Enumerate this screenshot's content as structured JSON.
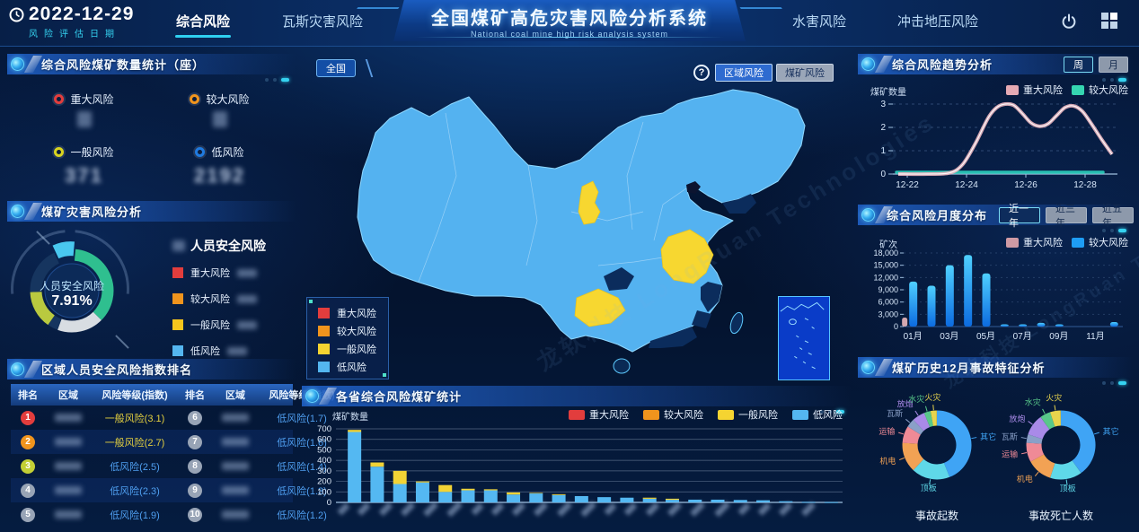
{
  "header": {
    "date": "2022-12-29",
    "date_label": "风险评估日期",
    "tabs": [
      {
        "label": "综合风险"
      },
      {
        "label": "瓦斯灾害风险"
      },
      {
        "label": "水害风险"
      },
      {
        "label": "冲击地压风险"
      }
    ],
    "active_tab": "综合风险",
    "title": "全国煤矿高危灾害风险分析系统",
    "subtitle": "National coal mine high risk analysis system"
  },
  "left": {
    "mine_count": {
      "title": "综合风险煤矿数量统计（座）",
      "items": [
        {
          "label": "重大风险",
          "color": "#e23d3d",
          "value": ""
        },
        {
          "label": "较大风险",
          "color": "#f0941d",
          "value": ""
        },
        {
          "label": "一般风险",
          "color": "#d9d41f",
          "value": "371"
        },
        {
          "label": "低风险",
          "color": "#1f7ae0",
          "value": "2192"
        }
      ]
    },
    "risk_analysis": {
      "title": "煤矿灾害风险分析",
      "donut_center_label": "人员安全风险",
      "donut_center_value": "7.91%",
      "legend_title": "人员安全风险",
      "legend": [
        {
          "label": "重大风险",
          "color": "#e23d3d"
        },
        {
          "label": "较大风险",
          "color": "#f0941d"
        },
        {
          "label": "一般风险",
          "color": "#f5c51d"
        },
        {
          "label": "低风险",
          "color": "#54b6f0"
        }
      ]
    },
    "ranking": {
      "title": "区域人员安全风险指数排名",
      "headers": [
        "排名",
        "区域",
        "风险等级(指数)",
        "排名",
        "区域",
        "风险等级(指数)"
      ],
      "rows": [
        {
          "rank1": "1",
          "badge1": "#e23d3d",
          "level1": "一般风险(3.1)",
          "lcolor1": "#e3cf3f",
          "rank2": "6",
          "badge2": "#98a4b6",
          "level2": "低风险(1.7)",
          "lcolor2": "#4f9ff0"
        },
        {
          "rank1": "2",
          "badge1": "#f0941d",
          "level1": "一般风险(2.7)",
          "lcolor1": "#e3cf3f",
          "rank2": "7",
          "badge2": "#98a4b6",
          "level2": "低风险(1.6)",
          "lcolor2": "#4f9ff0"
        },
        {
          "rank1": "3",
          "badge1": "#c3cf35",
          "level1": "低风险(2.5)",
          "lcolor1": "#4f9ff0",
          "rank2": "8",
          "badge2": "#98a4b6",
          "level2": "低风险(1.4)",
          "lcolor2": "#4f9ff0"
        },
        {
          "rank1": "4",
          "badge1": "#98a4b6",
          "level1": "低风险(2.3)",
          "lcolor1": "#4f9ff0",
          "rank2": "9",
          "badge2": "#98a4b6",
          "level2": "低风险(1.3)",
          "lcolor2": "#4f9ff0"
        },
        {
          "rank1": "5",
          "badge1": "#98a4b6",
          "level1": "低风险(1.9)",
          "lcolor1": "#4f9ff0",
          "rank2": "10",
          "badge2": "#98a4b6",
          "level2": "低风险(1.2)",
          "lcolor2": "#4f9ff0"
        }
      ]
    }
  },
  "map": {
    "breadcrumb": "全国",
    "help_label": "?",
    "mode_buttons": [
      {
        "label": "区域风险",
        "active": true
      },
      {
        "label": "煤矿风险",
        "active": false
      }
    ],
    "legend": [
      {
        "label": "重大风险",
        "color": "#e23d3d"
      },
      {
        "label": "较大风险",
        "color": "#f0941d"
      },
      {
        "label": "一般风险",
        "color": "#f5d431"
      },
      {
        "label": "低风险",
        "color": "#54b6f0"
      }
    ]
  },
  "province_panel": {
    "title": "各省综合风险煤矿统计",
    "ylabel": "煤矿数量",
    "legend": [
      {
        "label": "重大风险",
        "color": "#e23d3d"
      },
      {
        "label": "较大风险",
        "color": "#f0941d"
      },
      {
        "label": "一般风险",
        "color": "#f5d431"
      },
      {
        "label": "低风险",
        "color": "#54b6f0"
      }
    ]
  },
  "trend_panel": {
    "title": "综合风险趋势分析",
    "buttons": [
      {
        "label": "周",
        "active": true
      },
      {
        "label": "月",
        "active": false
      }
    ],
    "ylabel": "煤矿数量",
    "legend": [
      {
        "label": "重大风险",
        "color": "#e5aab4"
      },
      {
        "label": "较大风险",
        "color": "#35d5b0"
      }
    ]
  },
  "monthly_panel": {
    "title": "综合风险月度分布",
    "buttons": [
      {
        "label": "近一年",
        "active": true
      },
      {
        "label": "近三年",
        "active": false
      },
      {
        "label": "近五年",
        "active": false
      }
    ],
    "ylabel": "矿次",
    "legend": [
      {
        "label": "重大风险",
        "color": "#cf9aa4"
      },
      {
        "label": "较大风险",
        "color": "#1e9df5"
      }
    ]
  },
  "accident_panel": {
    "title": "煤矿历史12月事故特征分析",
    "captions": [
      "事故起数",
      "事故死亡人数"
    ]
  },
  "watermark": "龙软科技 LongRuan Technologies",
  "chart_data": {
    "trend": {
      "type": "line",
      "title": "综合风险趋势分析",
      "ylabel": "煤矿数量",
      "ylim": [
        0,
        3
      ],
      "yticks": [
        0,
        1,
        2,
        3
      ],
      "x": [
        "12-22",
        "12-23",
        "12-24",
        "12-25",
        "12-26",
        "12-27",
        "12-28",
        "12-29"
      ],
      "xticks": [
        "12-22",
        "12-24",
        "12-26",
        "12-28"
      ],
      "series": [
        {
          "name": "重大风险",
          "color": "#eab6c0",
          "values": [
            0,
            0,
            0.1,
            2.4,
            3.0,
            2.1,
            2.9,
            0.9
          ]
        },
        {
          "name": "较大风险",
          "color": "#2bc8b8",
          "values": [
            0,
            0,
            0,
            0,
            0,
            0,
            0,
            0
          ]
        }
      ],
      "curve": [
        [
          0,
          0
        ],
        [
          0.14,
          0
        ],
        [
          0.24,
          0.05
        ],
        [
          0.3,
          0.4
        ],
        [
          0.36,
          1.3
        ],
        [
          0.42,
          2.4
        ],
        [
          0.46,
          2.85
        ],
        [
          0.5,
          3.0
        ],
        [
          0.54,
          2.95
        ],
        [
          0.58,
          2.6
        ],
        [
          0.62,
          2.2
        ],
        [
          0.66,
          2.05
        ],
        [
          0.7,
          2.15
        ],
        [
          0.74,
          2.5
        ],
        [
          0.78,
          2.85
        ],
        [
          0.82,
          2.92
        ],
        [
          0.86,
          2.7
        ],
        [
          0.9,
          2.2
        ],
        [
          0.95,
          1.5
        ],
        [
          1,
          0.85
        ]
      ]
    },
    "monthly": {
      "type": "bar",
      "title": "综合风险月度分布",
      "ylabel": "矿次",
      "ylim": [
        0,
        18000
      ],
      "yticks": [
        0,
        3000,
        6000,
        9000,
        12000,
        15000,
        18000
      ],
      "categories": [
        "01月",
        "02月",
        "03月",
        "04月",
        "05月",
        "06月",
        "07月",
        "08月",
        "09月",
        "10月",
        "11月",
        "12月"
      ],
      "xticks": [
        "01月",
        "03月",
        "05月",
        "07月",
        "09月",
        "11月"
      ],
      "series": [
        {
          "name": "重大风险",
          "color": "#d4a8b0",
          "values": [
            2200,
            0,
            0,
            0,
            0,
            0,
            0,
            0,
            0,
            0,
            0,
            0
          ]
        },
        {
          "name": "较大风险",
          "color": "#1e9df5",
          "values": [
            11000,
            10000,
            15000,
            17500,
            13000,
            300,
            200,
            900,
            300,
            0,
            0,
            1100
          ]
        }
      ]
    },
    "provinces": {
      "type": "stacked-bar",
      "title": "各省综合风险煤矿统计",
      "ylabel": "煤矿数量",
      "ylim": [
        0,
        700
      ],
      "yticks": [
        0,
        100,
        200,
        300,
        400,
        500,
        600,
        700
      ],
      "categories_note": "22个省份名称（图中模糊不可读）",
      "series": [
        {
          "name": "低风险",
          "color": "#54b8f2",
          "values": [
            670,
            340,
            175,
            190,
            100,
            115,
            115,
            75,
            85,
            70,
            60,
            50,
            45,
            35,
            25,
            26,
            26,
            23,
            20,
            11,
            5,
            3
          ]
        },
        {
          "name": "一般风险",
          "color": "#f2d335",
          "values": [
            20,
            40,
            125,
            10,
            65,
            15,
            10,
            20,
            5,
            8,
            4,
            3,
            3,
            10,
            10,
            3,
            3,
            2,
            2,
            2,
            1,
            1
          ]
        }
      ]
    },
    "accident": [
      {
        "caption": "事故起数",
        "type": "pie",
        "slices": [
          {
            "label": "其它",
            "pct": 44,
            "color": "#3fa4f5"
          },
          {
            "label": "顶板",
            "pct": 18,
            "color": "#5fd8e8"
          },
          {
            "label": "机电",
            "pct": 14,
            "color": "#f2a254"
          },
          {
            "label": "运输",
            "pct": 8,
            "color": "#ef8a96"
          },
          {
            "label": "瓦斯",
            "pct": 4,
            "color": "#8aa0c8"
          },
          {
            "label": "放炮",
            "pct": 6,
            "color": "#a98ae8"
          },
          {
            "label": "水灾",
            "pct": 3,
            "color": "#58c88a"
          },
          {
            "label": "火灾",
            "pct": 3,
            "color": "#e8d44d"
          }
        ]
      },
      {
        "caption": "事故死亡人数",
        "type": "pie",
        "slices": [
          {
            "label": "其它",
            "pct": 40,
            "color": "#3fa4f5"
          },
          {
            "label": "顶板",
            "pct": 15,
            "color": "#5fd8e8"
          },
          {
            "label": "机电",
            "pct": 12,
            "color": "#f2a254"
          },
          {
            "label": "运输",
            "pct": 9,
            "color": "#ef8a96"
          },
          {
            "label": "瓦斯",
            "pct": 4,
            "color": "#8aa0c8"
          },
          {
            "label": "放炮",
            "pct": 10,
            "color": "#a98ae8"
          },
          {
            "label": "水灾",
            "pct": 5,
            "color": "#58c88a"
          },
          {
            "label": "火灾",
            "pct": 5,
            "color": "#e8d44d"
          }
        ]
      }
    ],
    "safety_donut": {
      "center_label": "人员安全风险",
      "center_value": "7.91%",
      "segments": [
        {
          "from": 5,
          "to": 135,
          "color": "#2fbf8f"
        },
        {
          "from": 135,
          "to": 200,
          "color": "#d8dde2"
        },
        {
          "from": 200,
          "to": 215,
          "color": "#16355f"
        },
        {
          "from": 215,
          "to": 268,
          "color": "#b9c93f"
        },
        {
          "from": 268,
          "to": 335,
          "color": "#16355f"
        },
        {
          "from": 335,
          "to": 365,
          "color": "#49c8f0",
          "pop": true
        }
      ]
    }
  }
}
